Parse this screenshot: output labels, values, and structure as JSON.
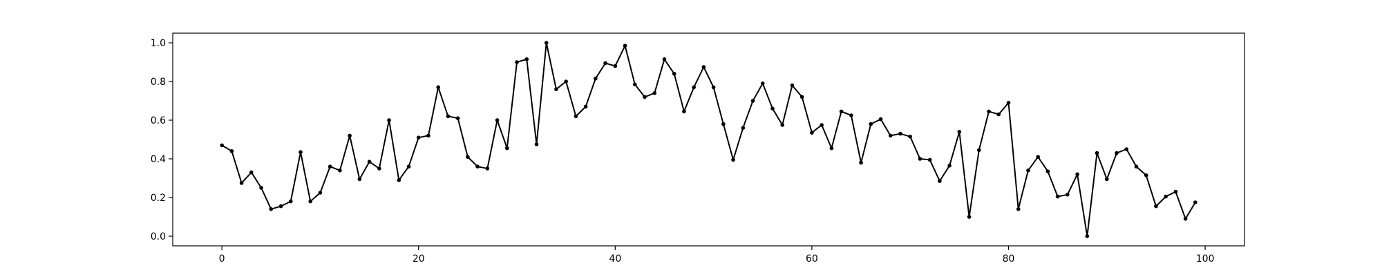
{
  "chart_data": {
    "type": "line",
    "title": "",
    "xlabel": "",
    "ylabel": "",
    "xlim": [
      -5,
      104
    ],
    "ylim": [
      -0.05,
      1.05
    ],
    "x_ticks": [
      0,
      20,
      40,
      60,
      80,
      100
    ],
    "y_ticks": [
      0.0,
      0.2,
      0.4,
      0.6,
      0.8,
      1.0
    ],
    "x_tick_labels": [
      "0",
      "20",
      "40",
      "60",
      "80",
      "100"
    ],
    "y_tick_labels": [
      "0.0",
      "0.2",
      "0.4",
      "0.6",
      "0.8",
      "1.0"
    ],
    "grid": false,
    "colors": {
      "line": "#000000",
      "marker": "#000000"
    },
    "series": [
      {
        "values": [
          0.47,
          0.44,
          0.275,
          0.33,
          0.25,
          0.14,
          0.155,
          0.18,
          0.435,
          0.18,
          0.225,
          0.36,
          0.34,
          0.52,
          0.295,
          0.385,
          0.35,
          0.6,
          0.29,
          0.36,
          0.51,
          0.52,
          0.77,
          0.62,
          0.61,
          0.41,
          0.36,
          0.35,
          0.6,
          0.455,
          0.9,
          0.915,
          0.475,
          1.0,
          0.76,
          0.8,
          0.62,
          0.67,
          0.815,
          0.895,
          0.88,
          0.985,
          0.785,
          0.72,
          0.74,
          0.915,
          0.84,
          0.645,
          0.77,
          0.875,
          0.77,
          0.58,
          0.395,
          0.56,
          0.7,
          0.79,
          0.66,
          0.575,
          0.78,
          0.72,
          0.535,
          0.575,
          0.455,
          0.645,
          0.625,
          0.38,
          0.58,
          0.605,
          0.52,
          0.53,
          0.515,
          0.4,
          0.395,
          0.285,
          0.365,
          0.54,
          0.1,
          0.445,
          0.645,
          0.63,
          0.69,
          0.14,
          0.34,
          0.41,
          0.335,
          0.205,
          0.215,
          0.32,
          0.0,
          0.43,
          0.295,
          0.43,
          0.45,
          0.36,
          0.315,
          0.155,
          0.205,
          0.23,
          0.09,
          0.175
        ]
      }
    ]
  }
}
